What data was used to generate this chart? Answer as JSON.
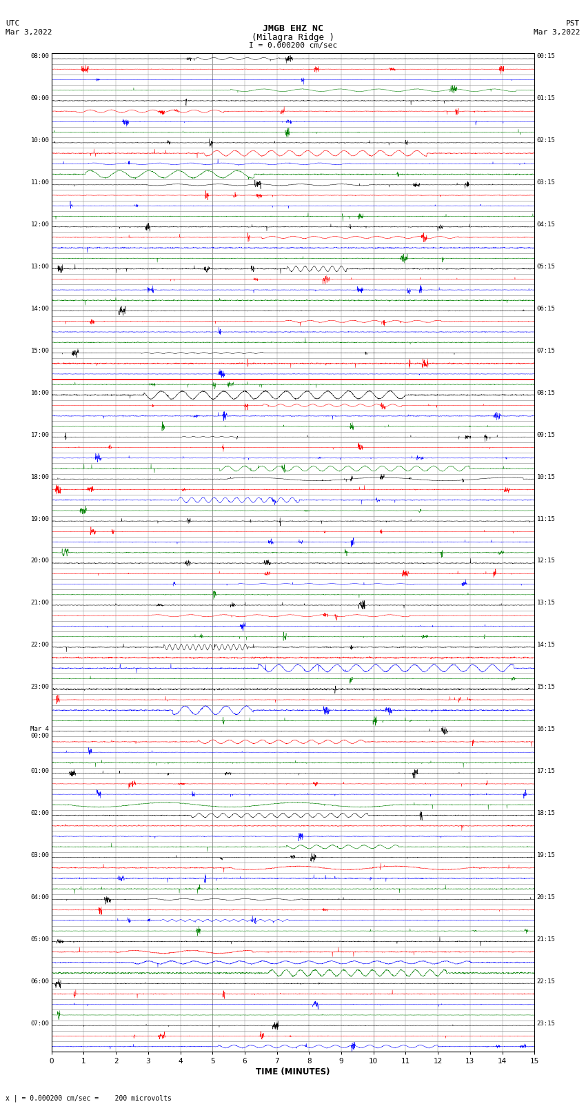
{
  "title_line1": "JMGB EHZ NC",
  "title_line2": "(Milagra Ridge )",
  "scale_label": "I = 0.000200 cm/sec",
  "left_label_top": "UTC",
  "left_label_date": "Mar 3,2022",
  "right_label_top": "PST",
  "right_label_date": "Mar 3,2022",
  "bottom_note": "x | = 0.000200 cm/sec =    200 microvolts",
  "xlabel": "TIME (MINUTES)",
  "minutes_per_row": 15,
  "bg_color": "#ffffff",
  "trace_color_pattern": [
    "black",
    "red",
    "blue",
    "green"
  ],
  "grid_color": "#999999",
  "figwidth": 8.5,
  "figheight": 16.13,
  "dpi": 100,
  "left_time_labels": [
    "08:00",
    "",
    "",
    "",
    "09:00",
    "",
    "",
    "",
    "10:00",
    "",
    "",
    "",
    "11:00",
    "",
    "",
    "",
    "12:00",
    "",
    "",
    "",
    "13:00",
    "",
    "",
    "",
    "14:00",
    "",
    "",
    "",
    "15:00",
    "",
    "",
    "",
    "16:00",
    "",
    "",
    "",
    "17:00",
    "",
    "",
    "",
    "18:00",
    "",
    "",
    "",
    "19:00",
    "",
    "",
    "",
    "20:00",
    "",
    "",
    "",
    "21:00",
    "",
    "",
    "",
    "22:00",
    "",
    "",
    "",
    "23:00",
    "",
    "",
    "",
    "Mar 4\n00:00",
    "",
    "",
    "",
    "01:00",
    "",
    "",
    "",
    "02:00",
    "",
    "",
    "",
    "03:00",
    "",
    "",
    "",
    "04:00",
    "",
    "",
    "",
    "05:00",
    "",
    "",
    "",
    "06:00",
    "",
    "",
    "",
    "07:00",
    "",
    ""
  ],
  "right_time_labels": [
    "00:15",
    "",
    "",
    "",
    "01:15",
    "",
    "",
    "",
    "02:15",
    "",
    "",
    "",
    "03:15",
    "",
    "",
    "",
    "04:15",
    "",
    "",
    "",
    "05:15",
    "",
    "",
    "",
    "06:15",
    "",
    "",
    "",
    "07:15",
    "",
    "",
    "",
    "08:15",
    "",
    "",
    "",
    "09:15",
    "",
    "",
    "",
    "10:15",
    "",
    "",
    "",
    "11:15",
    "",
    "",
    "",
    "12:15",
    "",
    "",
    "",
    "13:15",
    "",
    "",
    "",
    "14:15",
    "",
    "",
    "",
    "15:15",
    "",
    "",
    "",
    "16:15",
    "",
    "",
    "",
    "17:15",
    "",
    "",
    "",
    "18:15",
    "",
    "",
    "",
    "19:15",
    "",
    "",
    "",
    "20:15",
    "",
    "",
    "",
    "21:15",
    "",
    "",
    "",
    "22:15",
    "",
    "",
    "",
    "23:15",
    "",
    ""
  ]
}
